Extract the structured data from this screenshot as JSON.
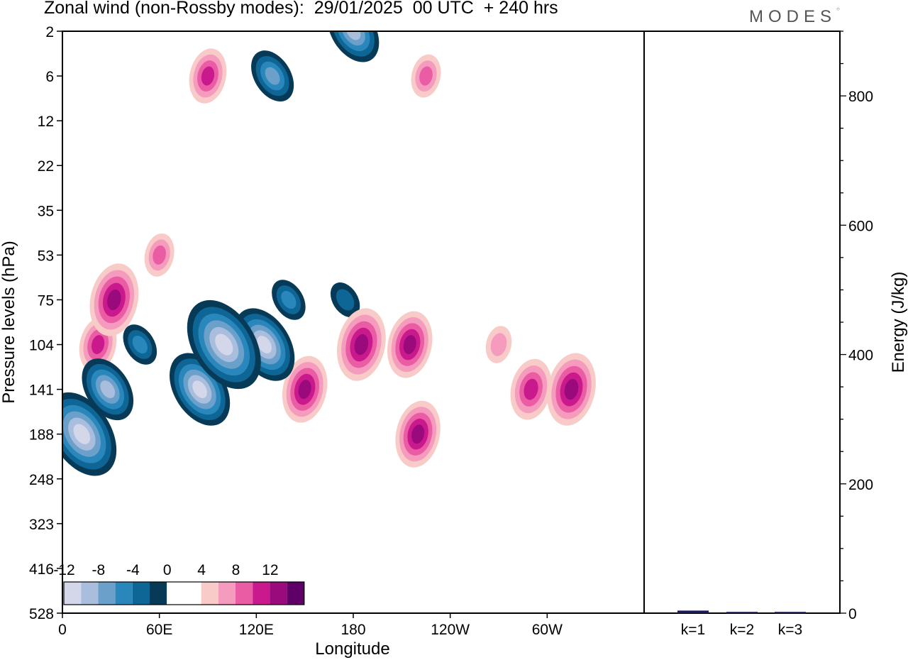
{
  "title": "Zonal wind (non-Rossby modes):  29/01/2025  00 UTC  + 240 hrs",
  "logo": "MODES",
  "colors": {
    "neg": [
      "#073a56",
      "#0e6697",
      "#2a87bc",
      "#6ba0cb",
      "#a8bedc",
      "#d4d7ea"
    ],
    "zero": "#ffffff",
    "pos": [
      "#f8cbc8",
      "#f59bbd",
      "#ea5ca4",
      "#c9198d",
      "#9a0a7c",
      "#5e0068"
    ],
    "bar": "#1a1a5c"
  },
  "chart_data": [
    {
      "type": "heatmap",
      "title": "Zonal wind (non-Rossby modes):  29/01/2025  00 UTC  + 240 hrs",
      "xlabel": "Longitude",
      "ylabel": "Pressure levels (hPa)",
      "x_ticks": [
        "0",
        "60E",
        "120E",
        "180",
        "120W",
        "60W"
      ],
      "y_ticks": [
        "2",
        "6",
        "12",
        "22",
        "35",
        "53",
        "75",
        "104",
        "141",
        "188",
        "248",
        "323",
        "416",
        "528"
      ],
      "colorbar_labels": [
        "-12",
        "-8",
        "-4",
        "0",
        "4",
        "8",
        "12"
      ],
      "colorbar_levels": [
        -12,
        -10,
        -8,
        -6,
        -4,
        -2,
        0,
        2,
        4,
        6,
        8,
        10,
        12
      ],
      "features": [
        {
          "lon": 12,
          "level": 188,
          "value": -12
        },
        {
          "lon": 28,
          "level": 141,
          "value": -8
        },
        {
          "lon": 48,
          "level": 104,
          "value": -4
        },
        {
          "lon": 85,
          "level": 141,
          "value": -10
        },
        {
          "lon": 100,
          "level": 104,
          "value": -13
        },
        {
          "lon": 125,
          "level": 104,
          "value": -10
        },
        {
          "lon": 140,
          "level": 75,
          "value": -4
        },
        {
          "lon": 175,
          "level": 75,
          "value": -3
        },
        {
          "lon": 22,
          "level": 104,
          "value": 6
        },
        {
          "lon": 32,
          "level": 75,
          "value": 9
        },
        {
          "lon": 60,
          "level": 53,
          "value": 4
        },
        {
          "lon": 150,
          "level": 141,
          "value": 8
        },
        {
          "lon": 185,
          "level": 104,
          "value": 9
        },
        {
          "lon": 215,
          "level": 104,
          "value": 8
        },
        {
          "lon": 220,
          "level": 188,
          "value": 8
        },
        {
          "lon": 290,
          "level": 141,
          "value": 7
        },
        {
          "lon": 315,
          "level": 141,
          "value": 9
        },
        {
          "lon": 270,
          "level": 104,
          "value": 3
        },
        {
          "lon": 130,
          "level": 6,
          "value": -6
        },
        {
          "lon": 180,
          "level": 2,
          "value": -8
        },
        {
          "lon": 90,
          "level": 6,
          "value": 6
        },
        {
          "lon": 225,
          "level": 6,
          "value": 4
        }
      ]
    },
    {
      "type": "bar",
      "ylabel": "Energy (J/kg)",
      "categories": [
        "k=1",
        "k=2",
        "k=3"
      ],
      "values": [
        4,
        2,
        2
      ],
      "ylim": [
        0,
        900
      ],
      "y_ticks": [
        0,
        200,
        400,
        600,
        800
      ]
    }
  ]
}
